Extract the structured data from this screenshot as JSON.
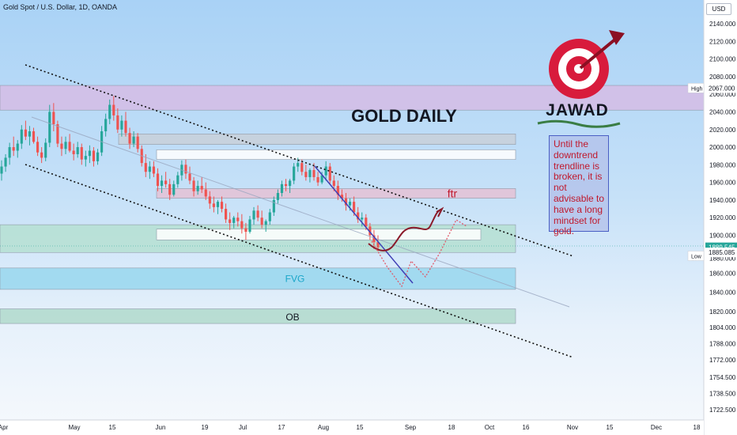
{
  "header": {
    "symbol_title": "Gold Spot / U.S. Dollar, 1D, OANDA",
    "currency_button": "USD"
  },
  "annotations": {
    "chart_title": "GOLD DAILY",
    "logo_text": "JAWAD",
    "note": "Until the downtrend trendline is broken, it is not advisable to have a long mindset for gold.",
    "zone_ftr": "ftr",
    "zone_fvg": "FVG",
    "zone_ob": "OB"
  },
  "price_scale": {
    "high_label": "High",
    "high_value": "2067.000",
    "last_value": "1889.545",
    "low_label": "Low",
    "low_value": "1885.085",
    "ticks": [
      "2140.000",
      "2120.000",
      "2100.000",
      "2080.000",
      "2060.000",
      "2040.000",
      "2020.000",
      "2000.000",
      "1980.000",
      "1960.000",
      "1940.000",
      "1920.000",
      "1900.000",
      "1880.000",
      "1860.000",
      "1840.000",
      "1820.000",
      "1804.000",
      "1788.000",
      "1772.000",
      "1754.500",
      "1738.500",
      "1722.500"
    ]
  },
  "time_axis": [
    "Apr",
    "May",
    "15",
    "Jun",
    "19",
    "Jul",
    "17",
    "Aug",
    "15",
    "Sep",
    "18",
    "Oct",
    "16",
    "Nov",
    "15",
    "Dec",
    "18"
  ],
  "colors": {
    "bullish": "#26a69a",
    "bearish": "#ef5350",
    "accent_red": "#d81b3c",
    "trendline_blue": "#3f3fb5",
    "projection": "#8b1a2a"
  },
  "chart_data": {
    "type": "candlestick",
    "title": "GOLD DAILY",
    "symbol": "Gold Spot / U.S. Dollar, 1D, OANDA",
    "x_labels": [
      "Apr",
      "May",
      "15",
      "Jun",
      "19",
      "Jul",
      "17",
      "Aug",
      "15",
      "Sep",
      "18",
      "Oct",
      "16",
      "Nov",
      "15",
      "Dec",
      "18"
    ],
    "ylim": [
      1715,
      2150
    ],
    "y_ticks": [
      2140,
      2120,
      2100,
      2080,
      2060,
      2040,
      2020,
      2000,
      1980,
      1960,
      1940,
      1920,
      1900,
      1880,
      1860,
      1840,
      1820,
      1804,
      1788,
      1772,
      1754.5,
      1738.5,
      1722.5
    ],
    "ohlc": [
      [
        1970,
        1985,
        1962,
        1978
      ],
      [
        1978,
        1992,
        1972,
        1988
      ],
      [
        1988,
        2005,
        1980,
        2000
      ],
      [
        2000,
        2012,
        1990,
        1996
      ],
      [
        1996,
        2008,
        1988,
        2004
      ],
      [
        2004,
        2025,
        1998,
        2020
      ],
      [
        2020,
        2030,
        2008,
        2012
      ],
      [
        2012,
        2024,
        2002,
        2018
      ],
      [
        2018,
        2022,
        2004,
        2006
      ],
      [
        2006,
        2012,
        1990,
        1994
      ],
      [
        1994,
        2000,
        1982,
        1988
      ],
      [
        1988,
        2010,
        1984,
        2005
      ],
      [
        2005,
        2048,
        2000,
        2040
      ],
      [
        2040,
        2050,
        2018,
        2026
      ],
      [
        2026,
        2030,
        2000,
        2004
      ],
      [
        2004,
        2012,
        1990,
        1998
      ],
      [
        1998,
        2012,
        1992,
        2006
      ],
      [
        2006,
        2015,
        1994,
        1996
      ],
      [
        1996,
        2004,
        1985,
        1992
      ],
      [
        1992,
        2006,
        1988,
        2000
      ],
      [
        2000,
        2004,
        1980,
        1986
      ],
      [
        1986,
        1996,
        1978,
        1990
      ],
      [
        1990,
        2002,
        1982,
        1996
      ],
      [
        1996,
        2000,
        1978,
        1984
      ],
      [
        1984,
        1998,
        1980,
        1994
      ],
      [
        1994,
        2024,
        1990,
        2018
      ],
      [
        2018,
        2038,
        2012,
        2032
      ],
      [
        2032,
        2054,
        2026,
        2048
      ],
      [
        2048,
        2058,
        2030,
        2036
      ],
      [
        2036,
        2044,
        2016,
        2020
      ],
      [
        2020,
        2036,
        2012,
        2030
      ],
      [
        2030,
        2040,
        2012,
        2016
      ],
      [
        2016,
        2022,
        1998,
        2004
      ],
      [
        2004,
        2018,
        2000,
        2012
      ],
      [
        2012,
        2016,
        1994,
        1998
      ],
      [
        1998,
        2002,
        1978,
        1982
      ],
      [
        1982,
        1992,
        1966,
        1972
      ],
      [
        1972,
        1984,
        1964,
        1978
      ],
      [
        1978,
        1984,
        1966,
        1970
      ],
      [
        1970,
        1976,
        1950,
        1956
      ],
      [
        1956,
        1968,
        1948,
        1962
      ],
      [
        1962,
        1972,
        1954,
        1958
      ],
      [
        1958,
        1964,
        1940,
        1946
      ],
      [
        1946,
        1962,
        1944,
        1958
      ],
      [
        1958,
        1972,
        1954,
        1968
      ],
      [
        1968,
        1985,
        1962,
        1980
      ],
      [
        1980,
        1986,
        1964,
        1970
      ],
      [
        1970,
        1978,
        1958,
        1962
      ],
      [
        1962,
        1966,
        1944,
        1950
      ],
      [
        1950,
        1962,
        1946,
        1956
      ],
      [
        1956,
        1966,
        1948,
        1952
      ],
      [
        1952,
        1960,
        1940,
        1944
      ],
      [
        1944,
        1950,
        1930,
        1936
      ],
      [
        1936,
        1944,
        1926,
        1932
      ],
      [
        1932,
        1940,
        1924,
        1938
      ],
      [
        1938,
        1944,
        1926,
        1930
      ],
      [
        1930,
        1936,
        1914,
        1918
      ],
      [
        1918,
        1926,
        1906,
        1914
      ],
      [
        1914,
        1922,
        1908,
        1920
      ],
      [
        1920,
        1926,
        1910,
        1916
      ],
      [
        1916,
        1924,
        1902,
        1908
      ],
      [
        1908,
        1914,
        1896,
        1904
      ],
      [
        1904,
        1922,
        1902,
        1918
      ],
      [
        1918,
        1932,
        1912,
        1928
      ],
      [
        1928,
        1934,
        1916,
        1920
      ],
      [
        1920,
        1928,
        1908,
        1912
      ],
      [
        1912,
        1918,
        1904,
        1916
      ],
      [
        1916,
        1930,
        1912,
        1926
      ],
      [
        1926,
        1944,
        1922,
        1940
      ],
      [
        1940,
        1952,
        1936,
        1948
      ],
      [
        1948,
        1962,
        1944,
        1958
      ],
      [
        1958,
        1964,
        1950,
        1956
      ],
      [
        1956,
        1964,
        1948,
        1962
      ],
      [
        1962,
        1982,
        1958,
        1978
      ],
      [
        1978,
        1988,
        1972,
        1982
      ],
      [
        1982,
        1986,
        1968,
        1972
      ],
      [
        1972,
        1980,
        1962,
        1966
      ],
      [
        1966,
        1976,
        1960,
        1974
      ],
      [
        1974,
        1982,
        1962,
        1966
      ],
      [
        1966,
        1972,
        1956,
        1960
      ],
      [
        1960,
        1972,
        1958,
        1968
      ],
      [
        1968,
        1984,
        1962,
        1978
      ],
      [
        1978,
        1982,
        1958,
        1962
      ],
      [
        1962,
        1968,
        1950,
        1956
      ],
      [
        1956,
        1962,
        1940,
        1946
      ],
      [
        1946,
        1952,
        1938,
        1942
      ],
      [
        1942,
        1948,
        1928,
        1934
      ],
      [
        1934,
        1942,
        1928,
        1938
      ],
      [
        1938,
        1944,
        1922,
        1926
      ],
      [
        1926,
        1932,
        1914,
        1918
      ],
      [
        1918,
        1926,
        1910,
        1920
      ],
      [
        1920,
        1924,
        1906,
        1910
      ],
      [
        1910,
        1914,
        1896,
        1900
      ],
      [
        1900,
        1906,
        1888,
        1894
      ],
      [
        1894,
        1900,
        1886,
        1889.5
      ]
    ],
    "zones": [
      {
        "label": "",
        "from": 2042,
        "to": 2070,
        "color": "#d9b8e3"
      },
      {
        "label": "",
        "from": 2003,
        "to": 2015,
        "color": "#c9ced6"
      },
      {
        "label": "",
        "from": 1986,
        "to": 1997,
        "color": "#ffffff"
      },
      {
        "label": "ftr",
        "from": 1942,
        "to": 1953,
        "color": "#e8bcd0"
      },
      {
        "label": "",
        "from": 1885,
        "to": 1912,
        "color": "#b2dfcc"
      },
      {
        "label": "",
        "from": 1896,
        "to": 1907,
        "color": "#ffffff"
      },
      {
        "label": "FVG",
        "from": 1843,
        "to": 1867,
        "color": "#8fd4ec"
      },
      {
        "label": "OB",
        "from": 1808,
        "to": 1823,
        "color": "#a9d7c6"
      }
    ],
    "last_price": 1889.545,
    "high": 2067,
    "low": 1885.085,
    "grid": false
  }
}
